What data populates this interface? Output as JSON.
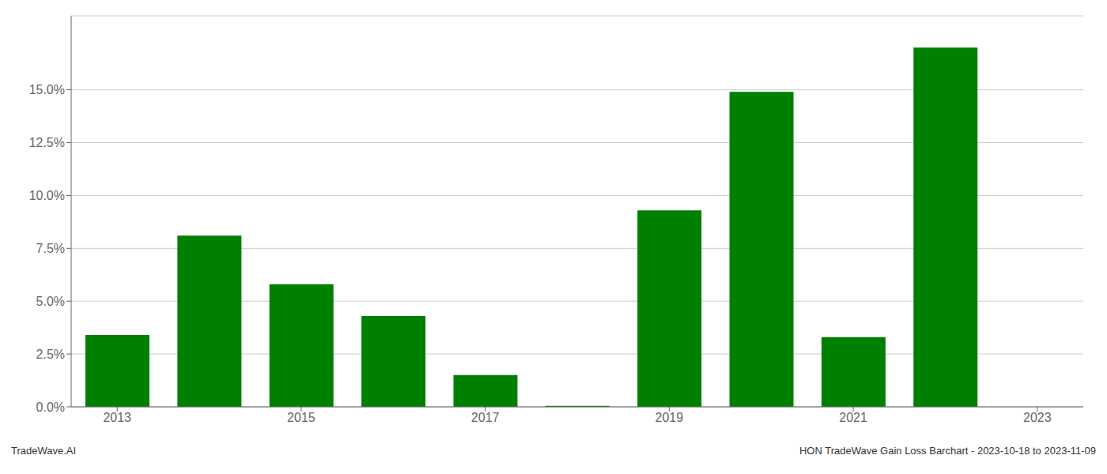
{
  "chart_data": {
    "type": "bar",
    "x": [
      2013,
      2014,
      2015,
      2016,
      2017,
      2018,
      2019,
      2020,
      2021,
      2022
    ],
    "values": [
      3.4,
      8.1,
      5.8,
      4.3,
      1.5,
      0.05,
      9.3,
      14.9,
      3.3,
      17.0
    ],
    "color": "#008000",
    "xlim": [
      2012.5,
      2023.5
    ],
    "xticks": [
      2013,
      2015,
      2017,
      2019,
      2021,
      2023
    ],
    "ylim": [
      0,
      18.5
    ],
    "yticks": [
      {
        "value": 0.0,
        "label": "0.0%"
      },
      {
        "value": 2.5,
        "label": "2.5%"
      },
      {
        "value": 5.0,
        "label": "5.0%"
      },
      {
        "value": 7.5,
        "label": "7.5%"
      },
      {
        "value": 10.0,
        "label": "10.0%"
      },
      {
        "value": 12.5,
        "label": "12.5%"
      },
      {
        "value": 15.0,
        "label": "15.0%"
      }
    ],
    "grid": true,
    "annotations": [
      "TradeWave.AI",
      "HON TradeWave Gain Loss Barchart - 2023-10-18 to 2023-11-09"
    ]
  }
}
